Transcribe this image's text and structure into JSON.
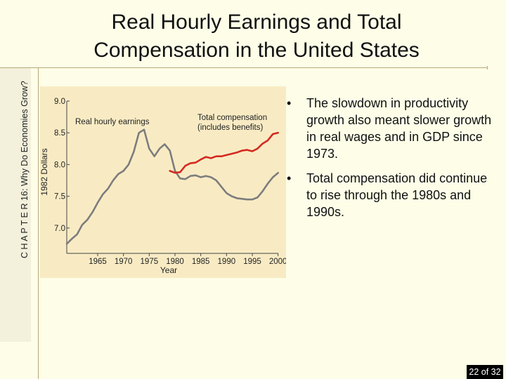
{
  "slide": {
    "title": "Real Hourly Earnings and Total Compensation in the United States",
    "chapter": "C H A P T E R 16: Why Do Economies Grow?",
    "page_counter": "22 of 32"
  },
  "bullets": [
    "The slowdown in productivity growth also meant slower growth in real wages and in GDP since 1973.",
    "Total compensation did continue to rise through the 1980s and 1990s."
  ],
  "chart_data": {
    "type": "line",
    "xlabel": "Year",
    "ylabel": "1982 Dollars",
    "xlim": [
      1959,
      2001
    ],
    "ylim": [
      6.6,
      9.1
    ],
    "x_ticks": [
      "1965",
      "1970",
      "1975",
      "1980",
      "1985",
      "1990",
      "1995",
      "2000"
    ],
    "y_ticks": [
      "9.0",
      "8.5",
      "8.0",
      "7.5",
      "7.0"
    ],
    "annotations": [
      "Real hourly earnings",
      "Total compensation",
      "(includes benefits)"
    ],
    "grid": false,
    "series": [
      {
        "name": "Real hourly earnings",
        "color": "#7d7d7d",
        "x": [
          1959,
          1960,
          1961,
          1962,
          1963,
          1964,
          1965,
          1966,
          1967,
          1968,
          1969,
          1970,
          1971,
          1972,
          1973,
          1974,
          1975,
          1976,
          1977,
          1978,
          1979,
          1980,
          1981,
          1982,
          1983,
          1984,
          1985,
          1986,
          1987,
          1988,
          1989,
          1990,
          1991,
          1992,
          1993,
          1994,
          1995,
          1996,
          1997,
          1998,
          1999,
          2000
        ],
        "values": [
          6.75,
          6.83,
          6.9,
          7.05,
          7.13,
          7.25,
          7.4,
          7.53,
          7.62,
          7.75,
          7.85,
          7.9,
          8.0,
          8.2,
          8.5,
          8.55,
          8.25,
          8.13,
          8.25,
          8.32,
          8.22,
          7.9,
          7.78,
          7.77,
          7.82,
          7.83,
          7.8,
          7.82,
          7.8,
          7.75,
          7.65,
          7.55,
          7.5,
          7.47,
          7.46,
          7.45,
          7.45,
          7.48,
          7.58,
          7.7,
          7.8,
          7.87
        ]
      },
      {
        "name": "Total compensation (includes benefits)",
        "color": "#d42a20",
        "x": [
          1979,
          1980,
          1981,
          1982,
          1983,
          1984,
          1985,
          1986,
          1987,
          1988,
          1989,
          1990,
          1991,
          1992,
          1993,
          1994,
          1995,
          1996,
          1997,
          1998,
          1999,
          2000
        ],
        "values": [
          7.9,
          7.87,
          7.88,
          7.98,
          8.02,
          8.03,
          8.08,
          8.12,
          8.1,
          8.13,
          8.13,
          8.15,
          8.17,
          8.19,
          8.22,
          8.23,
          8.21,
          8.25,
          8.33,
          8.38,
          8.48,
          8.5
        ]
      }
    ]
  }
}
